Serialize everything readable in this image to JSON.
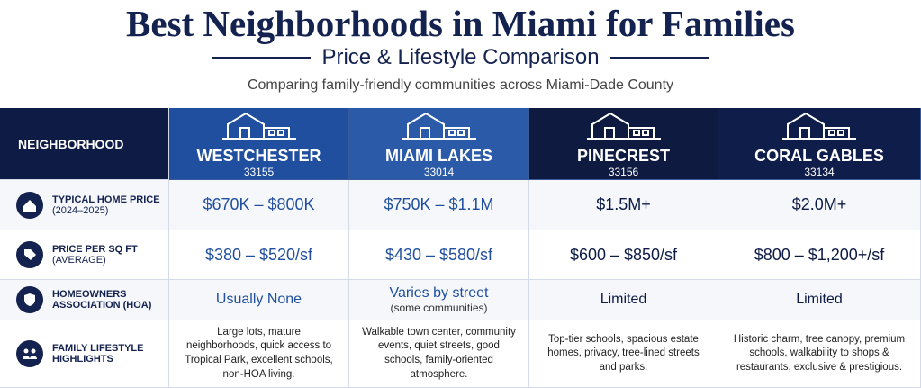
{
  "header": {
    "title": "Best Neighborhoods in Miami for Families",
    "subtitle": "Price & Lifestyle Comparison",
    "description": "Comparing family-friendly communities across Miami-Dade County"
  },
  "table": {
    "corner": "NEIGHBORHOOD",
    "columns": [
      {
        "name": "WESTCHESTER",
        "zip": "33155"
      },
      {
        "name": "MIAMI LAKES",
        "zip": "33014"
      },
      {
        "name": "PINECREST",
        "zip": "33156"
      },
      {
        "name": "CORAL GABLES",
        "zip": "33134"
      }
    ],
    "rows": [
      {
        "label": "TYPICAL HOME PRICE",
        "sublabel": "(2024–2025)",
        "cells": [
          {
            "text": "$670K – $800K"
          },
          {
            "text": "$750K – $1.1M"
          },
          {
            "text": "$1.5M+"
          },
          {
            "text": "$2.0M+"
          }
        ]
      },
      {
        "label": "PRICE PER SQ FT",
        "sublabel": "(AVERAGE)",
        "cells": [
          {
            "text": "$380 – $520/sf"
          },
          {
            "text": "$430 – $580/sf"
          },
          {
            "text": "$600 – $850/sf"
          },
          {
            "text": "$800 – $1,200+/sf"
          }
        ]
      },
      {
        "label": "HOMEOWNERS ASSOCIATION (HOA)",
        "cells": [
          {
            "text": "Usually None"
          },
          {
            "text": "Varies by street",
            "note": "(some communities)"
          },
          {
            "text": "Limited"
          },
          {
            "text": "Limited"
          }
        ]
      },
      {
        "label": "FAMILY LIFESTYLE HIGHLIGHTS",
        "cells": [
          {
            "text": "Large lots, mature neighborhoods, quick access to Tropical Park, excellent schools, non-HOA living."
          },
          {
            "text": "Walkable town center, community events, quiet streets, good schools, family-oriented atmosphere."
          },
          {
            "text": "Top-tier schools, spacious estate homes, privacy, tree-lined streets and parks."
          },
          {
            "text": "Historic charm, tree canopy, premium schools, walkability to shops & restaurants, exclusive & prestigious."
          }
        ]
      }
    ]
  }
}
